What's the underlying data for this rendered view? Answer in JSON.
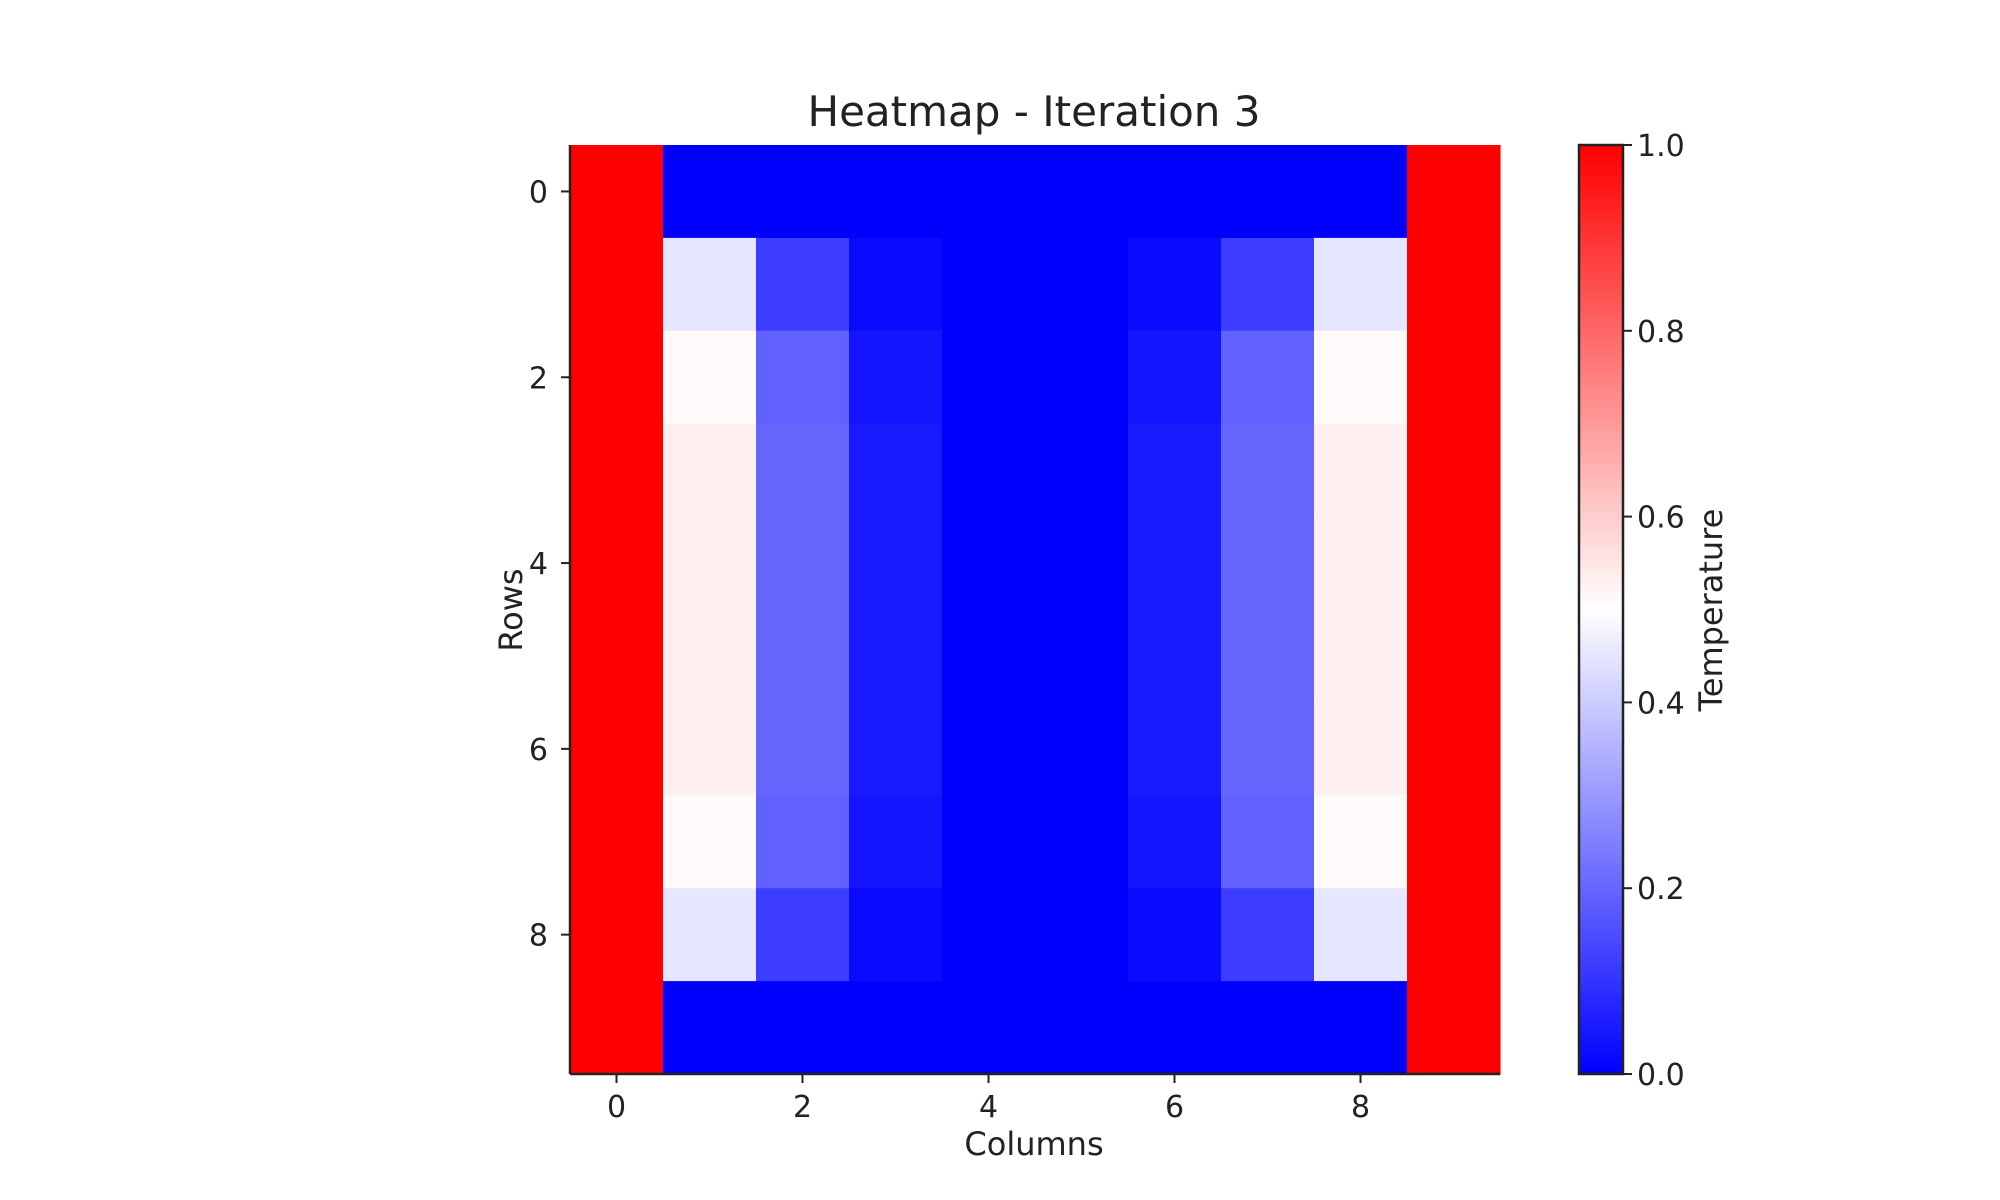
{
  "chart_data": {
    "type": "heatmap",
    "title": "Heatmap - Iteration 3",
    "xlabel": "Columns",
    "ylabel": "Rows",
    "colorbar_label": "Temperature",
    "colormap": "bwr",
    "vmin": 0.0,
    "vmax": 1.0,
    "x_ticks": [
      0,
      2,
      4,
      6,
      8
    ],
    "y_ticks": [
      0,
      2,
      4,
      6,
      8
    ],
    "colorbar_ticks": [
      "0.0",
      "0.2",
      "0.4",
      "0.6",
      "0.8",
      "1.0"
    ],
    "colorbar_tick_values": [
      0.0,
      0.2,
      0.4,
      0.6,
      0.8,
      1.0
    ],
    "values": [
      [
        1,
        0,
        0,
        0,
        0,
        0,
        0,
        0,
        0,
        1
      ],
      [
        1,
        0.45,
        0.12,
        0.02,
        0,
        0,
        0.02,
        0.12,
        0.45,
        1
      ],
      [
        1,
        0.51,
        0.19,
        0.04,
        0,
        0,
        0.04,
        0.19,
        0.51,
        1
      ],
      [
        1,
        0.53,
        0.2,
        0.05,
        0,
        0,
        0.05,
        0.2,
        0.53,
        1
      ],
      [
        1,
        0.53,
        0.2,
        0.05,
        0,
        0,
        0.05,
        0.2,
        0.53,
        1
      ],
      [
        1,
        0.53,
        0.2,
        0.05,
        0,
        0,
        0.05,
        0.2,
        0.53,
        1
      ],
      [
        1,
        0.53,
        0.2,
        0.05,
        0,
        0,
        0.05,
        0.2,
        0.53,
        1
      ],
      [
        1,
        0.51,
        0.19,
        0.04,
        0,
        0,
        0.04,
        0.19,
        0.51,
        1
      ],
      [
        1,
        0.45,
        0.12,
        0.02,
        0,
        0,
        0.02,
        0.12,
        0.45,
        1
      ],
      [
        1,
        0,
        0,
        0,
        0,
        0,
        0,
        0,
        0,
        1
      ]
    ]
  }
}
